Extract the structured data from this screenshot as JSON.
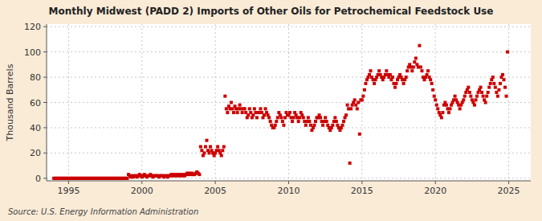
{
  "chart_data": {
    "type": "scatter",
    "title": "Monthly Midwest (PADD 2) Imports of Other Oils for Petrochemical Feedstock Use",
    "ylabel": "Thousand Barrels",
    "annotation": "Source: U.S. Energy Information Administration",
    "color": "#cc0000",
    "marker": "square",
    "grid": true,
    "xlim": [
      1993.5,
      2026.5
    ],
    "ylim": [
      -2,
      122
    ],
    "xticks": [
      1995,
      2000,
      2005,
      2010,
      2015,
      2020,
      2025
    ],
    "yticks": [
      0,
      20,
      40,
      60,
      80,
      100,
      120
    ],
    "x": [
      1994.0,
      1994.083,
      1994.167,
      1994.25,
      1994.333,
      1994.417,
      1994.5,
      1994.583,
      1994.667,
      1994.75,
      1994.833,
      1994.917,
      1995.0,
      1995.083,
      1995.167,
      1995.25,
      1995.333,
      1995.417,
      1995.5,
      1995.583,
      1995.667,
      1995.75,
      1995.833,
      1995.917,
      1996.0,
      1996.083,
      1996.167,
      1996.25,
      1996.333,
      1996.417,
      1996.5,
      1996.583,
      1996.667,
      1996.75,
      1996.833,
      1996.917,
      1997.0,
      1997.083,
      1997.167,
      1997.25,
      1997.333,
      1997.417,
      1997.5,
      1997.583,
      1997.667,
      1997.75,
      1997.833,
      1997.917,
      1998.0,
      1998.083,
      1998.167,
      1998.25,
      1998.333,
      1998.417,
      1998.5,
      1998.583,
      1998.667,
      1998.75,
      1998.833,
      1998.917,
      1999.0,
      1999.083,
      1999.167,
      1999.25,
      1999.333,
      1999.417,
      1999.5,
      1999.583,
      1999.667,
      1999.75,
      1999.833,
      1999.917,
      2000.0,
      2000.083,
      2000.167,
      2000.25,
      2000.333,
      2000.417,
      2000.5,
      2000.583,
      2000.667,
      2000.75,
      2000.833,
      2000.917,
      2001.0,
      2001.083,
      2001.167,
      2001.25,
      2001.333,
      2001.417,
      2001.5,
      2001.583,
      2001.667,
      2001.75,
      2001.833,
      2001.917,
      2002.0,
      2002.083,
      2002.167,
      2002.25,
      2002.333,
      2002.417,
      2002.5,
      2002.583,
      2002.667,
      2002.75,
      2002.833,
      2002.917,
      2003.0,
      2003.083,
      2003.167,
      2003.25,
      2003.333,
      2003.417,
      2003.5,
      2003.583,
      2003.667,
      2003.75,
      2003.833,
      2003.917,
      2004.0,
      2004.083,
      2004.167,
      2004.25,
      2004.333,
      2004.417,
      2004.5,
      2004.583,
      2004.667,
      2004.75,
      2004.833,
      2004.917,
      2005.0,
      2005.083,
      2005.167,
      2005.25,
      2005.333,
      2005.417,
      2005.5,
      2005.583,
      2005.667,
      2005.75,
      2005.833,
      2005.917,
      2006.0,
      2006.083,
      2006.167,
      2006.25,
      2006.333,
      2006.417,
      2006.5,
      2006.583,
      2006.667,
      2006.75,
      2006.833,
      2006.917,
      2007.0,
      2007.083,
      2007.167,
      2007.25,
      2007.333,
      2007.417,
      2007.5,
      2007.583,
      2007.667,
      2007.75,
      2007.833,
      2007.917,
      2008.0,
      2008.083,
      2008.167,
      2008.25,
      2008.333,
      2008.417,
      2008.5,
      2008.583,
      2008.667,
      2008.75,
      2008.833,
      2008.917,
      2009.0,
      2009.083,
      2009.167,
      2009.25,
      2009.333,
      2009.417,
      2009.5,
      2009.583,
      2009.667,
      2009.75,
      2009.833,
      2009.917,
      2010.0,
      2010.083,
      2010.167,
      2010.25,
      2010.333,
      2010.417,
      2010.5,
      2010.583,
      2010.667,
      2010.75,
      2010.833,
      2010.917,
      2011.0,
      2011.083,
      2011.167,
      2011.25,
      2011.333,
      2011.417,
      2011.5,
      2011.583,
      2011.667,
      2011.75,
      2011.833,
      2011.917,
      2012.0,
      2012.083,
      2012.167,
      2012.25,
      2012.333,
      2012.417,
      2012.5,
      2012.583,
      2012.667,
      2012.75,
      2012.833,
      2012.917,
      2013.0,
      2013.083,
      2013.167,
      2013.25,
      2013.333,
      2013.417,
      2013.5,
      2013.583,
      2013.667,
      2013.75,
      2013.833,
      2013.917,
      2014.0,
      2014.083,
      2014.167,
      2014.25,
      2014.333,
      2014.417,
      2014.5,
      2014.583,
      2014.667,
      2014.75,
      2014.833,
      2014.917,
      2015.0,
      2015.083,
      2015.167,
      2015.25,
      2015.333,
      2015.417,
      2015.5,
      2015.583,
      2015.667,
      2015.75,
      2015.833,
      2015.917,
      2016.0,
      2016.083,
      2016.167,
      2016.25,
      2016.333,
      2016.417,
      2016.5,
      2016.583,
      2016.667,
      2016.75,
      2016.833,
      2016.917,
      2017.0,
      2017.083,
      2017.167,
      2017.25,
      2017.333,
      2017.417,
      2017.5,
      2017.583,
      2017.667,
      2017.75,
      2017.833,
      2017.917,
      2018.0,
      2018.083,
      2018.167,
      2018.25,
      2018.333,
      2018.417,
      2018.5,
      2018.583,
      2018.667,
      2018.75,
      2018.833,
      2018.917,
      2019.0,
      2019.083,
      2019.167,
      2019.25,
      2019.333,
      2019.417,
      2019.5,
      2019.583,
      2019.667,
      2019.75,
      2019.833,
      2019.917,
      2020.0,
      2020.083,
      2020.167,
      2020.25,
      2020.333,
      2020.417,
      2020.5,
      2020.583,
      2020.667,
      2020.75,
      2020.833,
      2020.917,
      2021.0,
      2021.083,
      2021.167,
      2021.25,
      2021.333,
      2021.417,
      2021.5,
      2021.583,
      2021.667,
      2021.75,
      2021.833,
      2021.917,
      2022.0,
      2022.083,
      2022.167,
      2022.25,
      2022.333,
      2022.417,
      2022.5,
      2022.583,
      2022.667,
      2022.75,
      2022.833,
      2022.917,
      2023.0,
      2023.083,
      2023.167,
      2023.25,
      2023.333,
      2023.417,
      2023.5,
      2023.583,
      2023.667,
      2023.75,
      2023.833,
      2023.917,
      2024.0,
      2024.083,
      2024.167,
      2024.25,
      2024.333,
      2024.417,
      2024.5,
      2024.583,
      2024.667,
      2024.75,
      2024.833,
      2024.917
    ],
    "values": [
      0,
      0,
      0,
      0,
      0,
      0,
      0,
      0,
      0,
      0,
      0,
      0,
      0,
      0,
      0,
      0,
      0,
      0,
      0,
      0,
      0,
      0,
      0,
      0,
      0,
      0,
      0,
      0,
      0,
      0,
      0,
      0,
      0,
      0,
      0,
      0,
      0,
      0,
      0,
      0,
      0,
      0,
      0,
      0,
      0,
      0,
      0,
      0,
      0,
      0,
      0,
      0,
      0,
      0,
      0,
      0,
      0,
      0,
      0,
      0,
      0,
      3,
      2,
      1,
      2,
      1,
      2,
      2,
      1,
      2,
      3,
      2,
      1,
      2,
      3,
      2,
      1,
      2,
      2,
      3,
      2,
      1,
      2,
      2,
      2,
      2,
      1,
      2,
      2,
      2,
      1,
      2,
      2,
      1,
      2,
      2,
      3,
      2,
      3,
      2,
      3,
      2,
      3,
      2,
      3,
      2,
      3,
      2,
      3,
      4,
      3,
      4,
      3,
      4,
      3,
      3,
      4,
      5,
      4,
      3,
      25,
      22,
      18,
      20,
      25,
      30,
      22,
      20,
      25,
      22,
      20,
      18,
      20,
      22,
      25,
      22,
      20,
      18,
      22,
      25,
      65,
      55,
      52,
      57,
      55,
      60,
      55,
      52,
      57,
      55,
      52,
      55,
      58,
      55,
      52,
      55,
      55,
      52,
      48,
      50,
      55,
      52,
      48,
      50,
      55,
      52,
      48,
      52,
      52,
      55,
      52,
      48,
      50,
      55,
      52,
      50,
      48,
      45,
      42,
      40,
      40,
      42,
      45,
      48,
      52,
      50,
      48,
      45,
      42,
      48,
      52,
      50,
      50,
      52,
      48,
      45,
      48,
      52,
      50,
      48,
      45,
      48,
      52,
      50,
      48,
      45,
      42,
      45,
      48,
      45,
      42,
      38,
      40,
      42,
      45,
      48,
      48,
      50,
      48,
      45,
      42,
      45,
      48,
      45,
      42,
      40,
      38,
      40,
      42,
      45,
      48,
      45,
      42,
      40,
      38,
      40,
      42,
      45,
      48,
      50,
      58,
      55,
      12,
      55,
      58,
      60,
      62,
      58,
      55,
      60,
      35,
      62,
      62,
      65,
      70,
      75,
      78,
      80,
      82,
      85,
      80,
      78,
      75,
      78,
      80,
      82,
      85,
      82,
      80,
      78,
      80,
      82,
      85,
      82,
      80,
      82,
      78,
      80,
      75,
      72,
      75,
      78,
      80,
      82,
      80,
      78,
      75,
      78,
      80,
      85,
      88,
      90,
      88,
      85,
      88,
      92,
      95,
      90,
      88,
      105,
      88,
      85,
      80,
      78,
      80,
      82,
      85,
      80,
      78,
      75,
      70,
      65,
      62,
      58,
      55,
      52,
      50,
      48,
      52,
      58,
      60,
      58,
      55,
      52,
      55,
      58,
      60,
      62,
      65,
      62,
      60,
      58,
      55,
      58,
      60,
      62,
      65,
      68,
      70,
      72,
      68,
      65,
      62,
      60,
      58,
      62,
      65,
      68,
      70,
      72,
      68,
      65,
      62,
      60,
      65,
      68,
      72,
      75,
      78,
      80,
      75,
      72,
      68,
      65,
      70,
      75,
      80,
      82,
      78,
      72,
      65,
      100
    ]
  }
}
